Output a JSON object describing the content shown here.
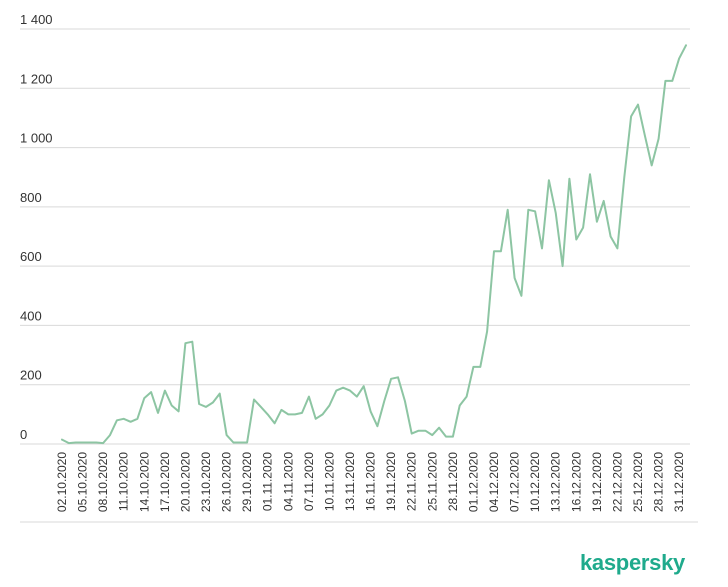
{
  "brand": {
    "logo_text": "kaspersky",
    "color": "#1faa8c"
  },
  "chart_data": {
    "type": "line",
    "title": "",
    "xlabel": "",
    "ylabel": "",
    "ylim": [
      0,
      1400
    ],
    "y_ticks": [
      0,
      200,
      400,
      600,
      800,
      1000,
      1200,
      1400
    ],
    "y_tick_labels": [
      "0",
      "200",
      "400",
      "600",
      "800",
      "1 000",
      "1 200",
      "1 400"
    ],
    "grid": true,
    "legend": "none",
    "line_color": "#8dc5a3",
    "x_tick_labels": [
      "02.10.2020",
      "05.10.2020",
      "08.10.2020",
      "11.10.2020",
      "14.10.2020",
      "17.10.2020",
      "20.10.2020",
      "23.10.2020",
      "26.10.2020",
      "29.10.2020",
      "01.11.2020",
      "04.11.2020",
      "07.11.2020",
      "10.11.2020",
      "13.11.2020",
      "16.11.2020",
      "19.11.2020",
      "22.11.2020",
      "25.11.2020",
      "28.11.2020",
      "01.12.2020",
      "04.12.2020",
      "07.12.2020",
      "10.12.2020",
      "13.12.2020",
      "16.12.2020",
      "19.12.2020",
      "22.12.2020",
      "25.12.2020",
      "28.12.2020",
      "31.12.2020"
    ],
    "series": [
      {
        "start_date": "02.10.2020",
        "values": [
          15,
          3,
          5,
          5,
          5,
          5,
          3,
          30,
          80,
          85,
          75,
          85,
          155,
          175,
          105,
          180,
          130,
          110,
          340,
          345,
          135,
          125,
          140,
          170,
          30,
          5,
          5,
          5,
          150,
          125,
          100,
          70,
          115,
          100,
          100,
          105,
          160,
          85,
          100,
          130,
          180,
          190,
          180,
          160,
          195,
          110,
          60,
          145,
          220,
          225,
          145,
          35,
          45,
          45,
          30,
          55,
          25,
          25,
          130,
          160,
          260,
          260,
          380,
          650,
          650,
          790,
          560,
          500,
          790,
          785,
          660,
          890,
          780,
          600,
          895,
          690,
          730,
          910,
          750,
          820,
          700,
          660,
          900,
          1105,
          1145,
          1040,
          940,
          1030,
          1225,
          1225,
          1300,
          1345
        ]
      }
    ]
  }
}
